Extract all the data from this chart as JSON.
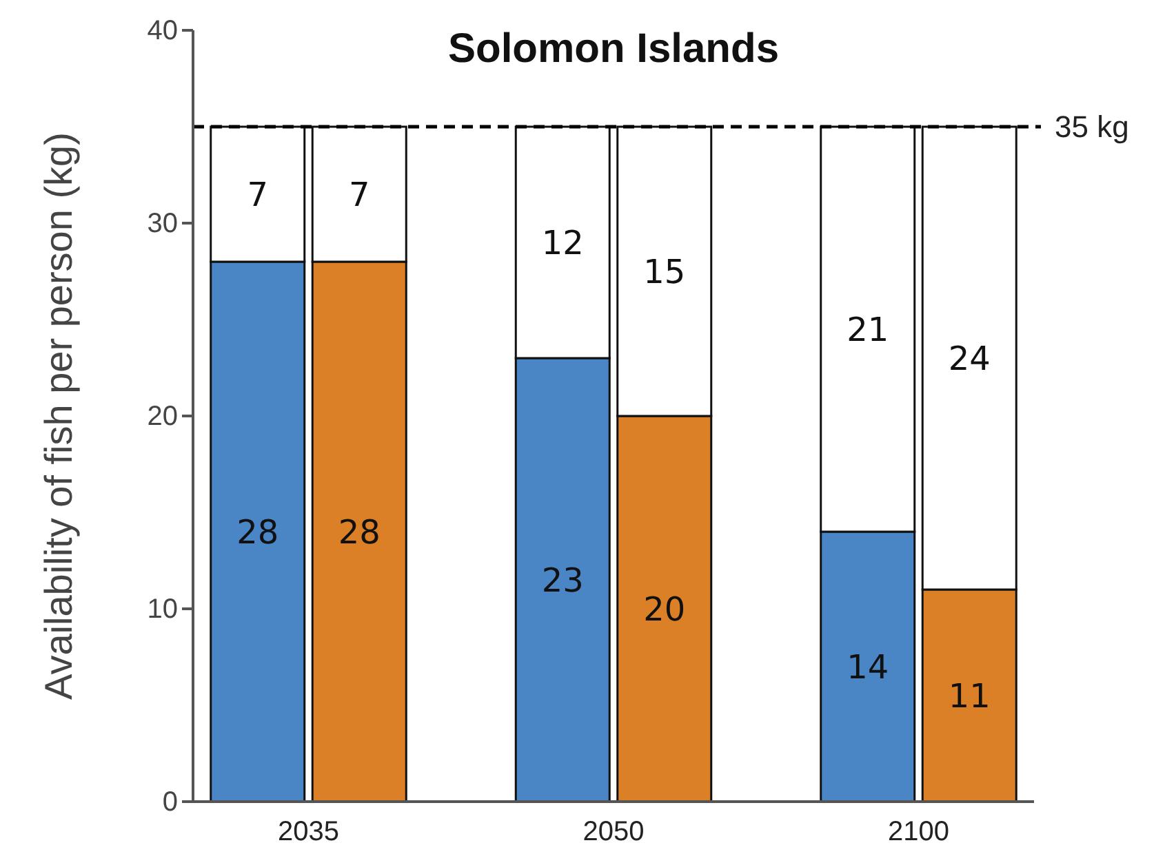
{
  "chart_data": {
    "type": "bar",
    "title": "Solomon Islands",
    "ylabel": "Availability of fish per person (kg)",
    "categories": [
      "2035",
      null,
      null,
      "2050",
      null,
      null,
      "2100",
      null
    ],
    "stacked": true,
    "data_labels": true,
    "series": [
      {
        "values": [
          28,
          28,
          null,
          23,
          20,
          null,
          14,
          11
        ],
        "colors": [
          "#4a86c5",
          "#dc8028",
          null,
          "#4a86c5",
          "#dc8028",
          null,
          "#4a86c5",
          "#dc8028"
        ]
      },
      {
        "values": [
          7,
          7,
          null,
          12,
          15,
          null,
          21,
          24
        ],
        "color": "#ffffff"
      }
    ],
    "ylim": [
      0,
      40
    ],
    "yticks": [
      0,
      10,
      20,
      30,
      40
    ],
    "grid": false,
    "ref_lines": [
      {
        "axis": "y",
        "value": 35,
        "label": "35 kg",
        "line_style": "dashed",
        "color": "#000000"
      }
    ]
  }
}
